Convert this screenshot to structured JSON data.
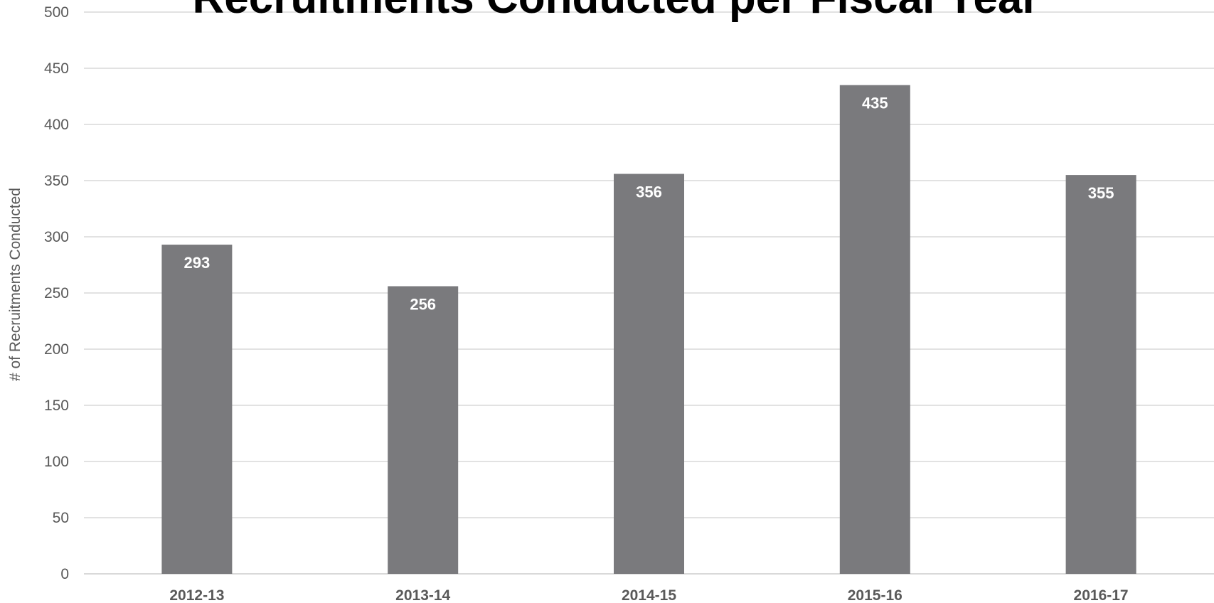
{
  "chart_data": {
    "type": "bar",
    "title": "Recruitments Conducted per Fiscal Year",
    "xlabel": "",
    "ylabel": "# of Recruitments Conducted",
    "categories": [
      "2012-13",
      "2013-14",
      "2014-15",
      "2015-16",
      "2016-17"
    ],
    "values": [
      293,
      256,
      356,
      435,
      355
    ],
    "ylim": [
      0,
      500
    ],
    "yticks": [
      "0",
      "50",
      "100",
      "150",
      "200",
      "250",
      "300",
      "350",
      "400",
      "450",
      "500"
    ],
    "data_labels": [
      "293",
      "256",
      "356",
      "435",
      "355"
    ],
    "grid": true,
    "legend": "none",
    "colors": {
      "bar": "#7a7a7d",
      "grid": "#d9d9d9",
      "axis_text": "#595959",
      "title": "#000000",
      "bar_label": "#ffffff"
    }
  }
}
